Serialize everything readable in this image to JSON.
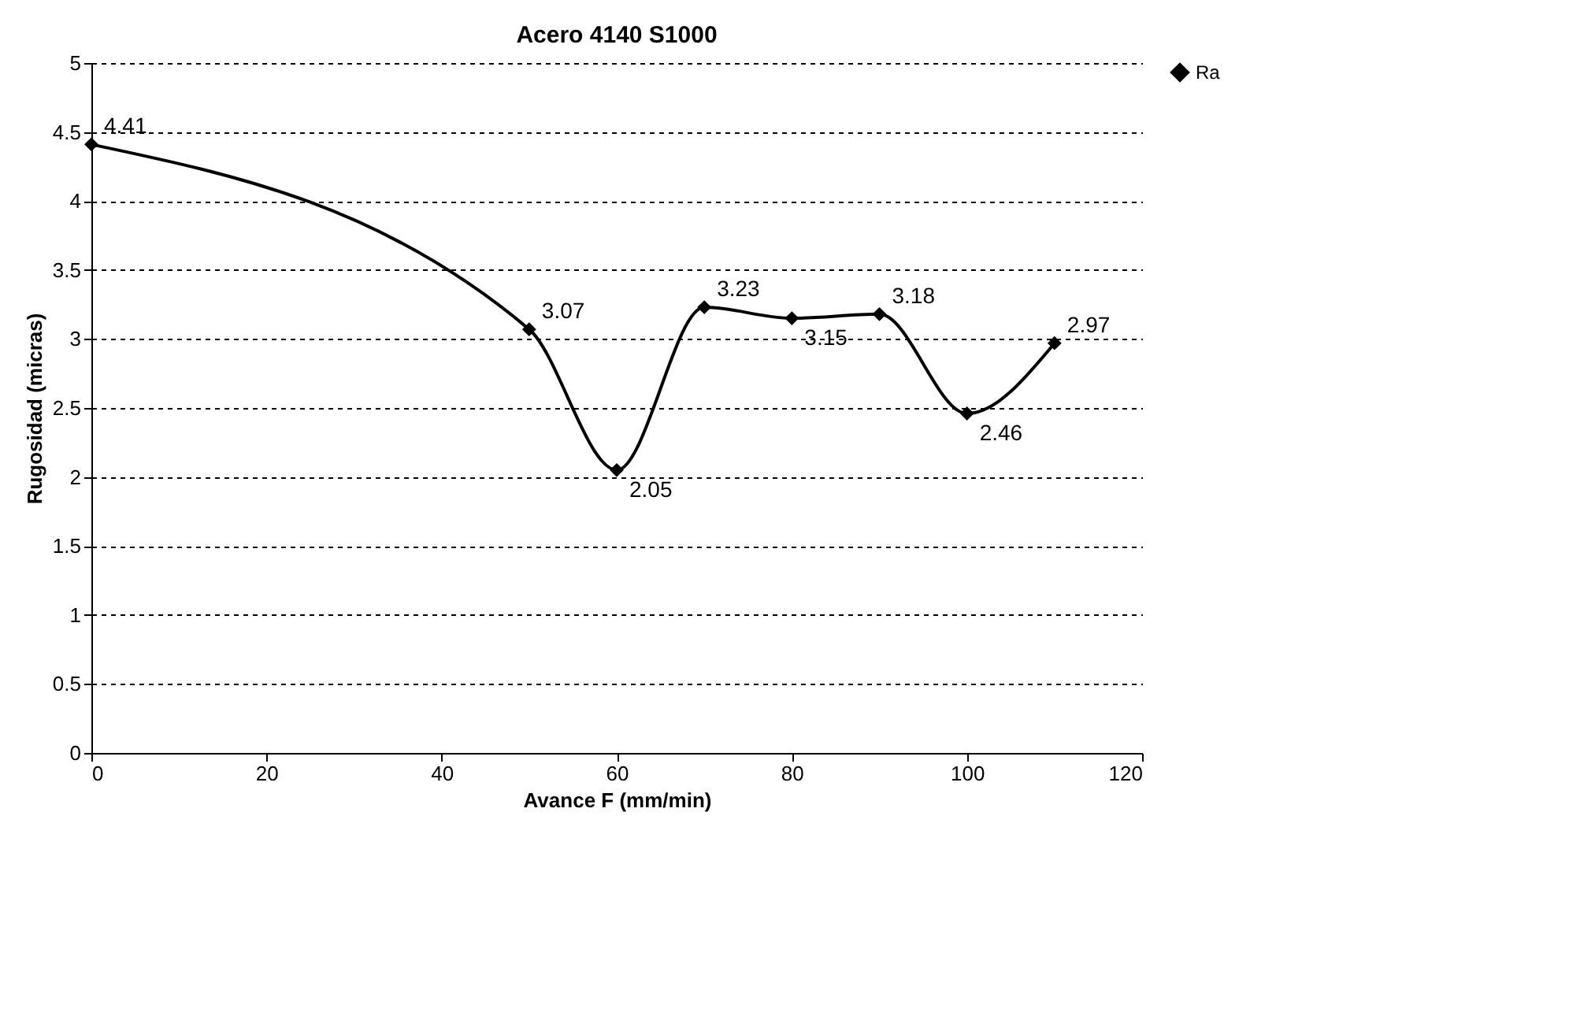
{
  "chart_data": {
    "type": "line",
    "title": "Acero 4140 S1000",
    "xlabel": "Avance F (mm/min)",
    "ylabel": "Rugosidad (micras)",
    "x": [
      0,
      50,
      60,
      70,
      80,
      90,
      100,
      110
    ],
    "series": [
      {
        "name": "Ra",
        "color": "#000000",
        "values": [
          4.41,
          3.07,
          2.05,
          3.23,
          3.15,
          3.18,
          2.46,
          2.97
        ]
      }
    ],
    "xlim": [
      0,
      120
    ],
    "xticks": [
      0,
      20,
      40,
      60,
      80,
      100,
      120
    ],
    "ylim": [
      0,
      5
    ],
    "yticks": [
      0,
      0.5,
      1,
      1.5,
      2,
      2.5,
      3,
      3.5,
      4,
      4.5,
      5
    ],
    "grid": "y",
    "legend": "right",
    "marker": "diamond",
    "line_style": "solid",
    "data_labels": true
  }
}
